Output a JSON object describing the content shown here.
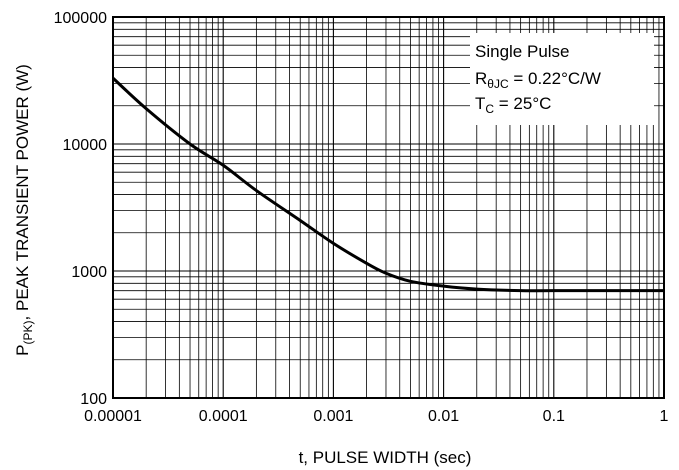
{
  "chart_data": {
    "type": "line",
    "x_scale": "log",
    "y_scale": "log",
    "xlim": [
      1e-05,
      1
    ],
    "ylim": [
      100,
      100000
    ],
    "grid": true,
    "xlabel": "t, PULSE WIDTH (sec)",
    "ylabel": {
      "prefix": "P",
      "subscript": "(PK)",
      "suffix": ", PEAK TRANSIENT POWER (W)"
    },
    "x_tick_labels": [
      "0.00001",
      "0.0001",
      "0.001",
      "0.01",
      "0.1",
      "1"
    ],
    "y_tick_labels": [
      "100",
      "1000",
      "10000",
      "100000"
    ],
    "legend": {
      "placement": "top-right",
      "lines": [
        {
          "text": "Single Pulse",
          "sub": "",
          "rest": ""
        },
        {
          "text": "R",
          "sub": "θJC",
          "rest": " = 0.22°C/W"
        },
        {
          "text": "T",
          "sub": "C",
          "rest": " = 25°C"
        }
      ]
    },
    "series": [
      {
        "color": "#000000",
        "x": [
          1e-05,
          2e-05,
          5e-05,
          0.0001,
          0.0002,
          0.0005,
          0.001,
          0.002,
          0.003,
          0.005,
          0.01,
          0.02,
          0.05,
          0.1,
          0.5,
          1
        ],
        "y": [
          33000,
          19000,
          10000,
          6800,
          4300,
          2500,
          1650,
          1150,
          960,
          830,
          760,
          720,
          700,
          700,
          700,
          700
        ]
      }
    ]
  }
}
